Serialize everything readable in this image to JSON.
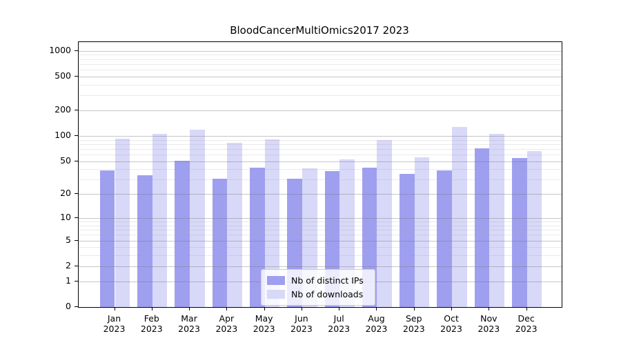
{
  "chart_data": {
    "type": "bar",
    "title": "BloodCancerMultiOmics2017 2023",
    "categories": [
      "Jan",
      "Feb",
      "Mar",
      "Apr",
      "May",
      "Jun",
      "Jul",
      "Aug",
      "Sep",
      "Oct",
      "Nov",
      "Dec"
    ],
    "year_label": "2023",
    "series": [
      {
        "name": "Nb of distinct IPs",
        "color": "#9f9ff0",
        "values": [
          39,
          34,
          51,
          31,
          42,
          31,
          38,
          42,
          35,
          39,
          71,
          55
        ]
      },
      {
        "name": "Nb of downloads",
        "color": "#d8d8f8",
        "values": [
          93,
          106,
          118,
          83,
          91,
          41,
          53,
          90,
          56,
          128,
          106,
          66
        ]
      }
    ],
    "xlabel": "",
    "ylabel": "",
    "yscale": "log1p",
    "ylim": [
      0,
      1265
    ],
    "yticks": [
      0,
      1,
      2,
      5,
      10,
      20,
      50,
      100,
      200,
      500,
      1000
    ],
    "ytick_labels": [
      "0",
      "1",
      "2",
      "5",
      "10",
      "20",
      "50",
      "100",
      "200",
      "500",
      "1000"
    ],
    "yticks_minor": [
      3,
      4,
      6,
      7,
      8,
      9,
      30,
      40,
      60,
      70,
      80,
      90,
      300,
      400,
      600,
      700,
      800,
      900
    ],
    "grid": "on",
    "legend_position": "lower center"
  },
  "colors": {
    "background": "#ffffff",
    "axis": "#000000",
    "grid_major": "#c6c6c6",
    "grid_minor": "#e8e8e8",
    "legend_border": "#cccccc",
    "series_ips": "#9f9ff0",
    "series_downloads": "#d8d8f8"
  }
}
